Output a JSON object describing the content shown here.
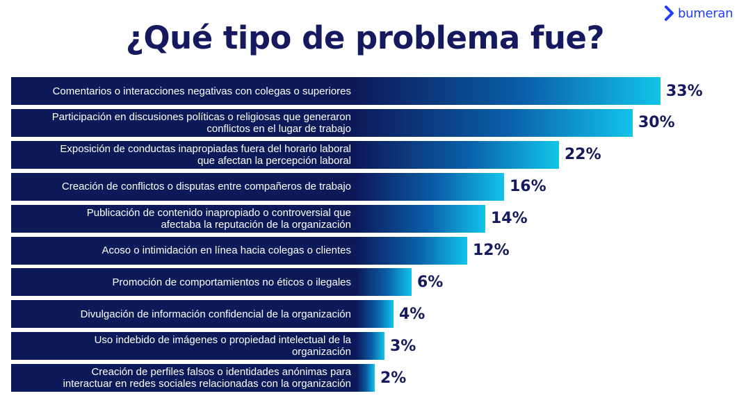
{
  "brand": {
    "name": "bumeran",
    "color": "#1f3cff"
  },
  "chart_data": {
    "type": "bar",
    "orientation": "horizontal",
    "title": "¿Qué tipo de problema fue?",
    "categories": [
      "Comentarios o interacciones negativas con colegas o superiores",
      "Participación en discusiones políticas o religiosas que generaron conflictos en el lugar de trabajo",
      "Exposición de conductas inapropiadas fuera del horario laboral que afectan la percepción laboral",
      "Creación de conflictos o disputas entre compañeros de trabajo",
      "Publicación de contenido inapropiado o controversial que afectaba la reputación de la organización",
      "Acoso o intimidación en línea hacia colegas o clientes",
      "Promoción de comportamientos no éticos o ilegales",
      "Divulgación de información confidencial de la organización",
      "Uso indebido de imágenes o propiedad intelectual de la organización",
      "Creación de perfiles falsos o identidades anónimas para interactuar en redes sociales relacionadas con la organización"
    ],
    "label_lines": [
      [
        "Comentarios o interacciones negativas con colegas o superiores"
      ],
      [
        "Participación en discusiones políticas o religiosas que generaron",
        "conflictos en el lugar de trabajo"
      ],
      [
        "Exposición de conductas inapropiadas fuera del horario laboral",
        "que afectan la percepción laboral"
      ],
      [
        "Creación de conflictos o disputas entre compañeros de trabajo"
      ],
      [
        "Publicación de contenido inapropiado o controversial que",
        "afectaba la reputación de la organización"
      ],
      [
        "Acoso o intimidación en línea hacia colegas o clientes"
      ],
      [
        "Promoción de comportamientos no éticos o ilegales"
      ],
      [
        "Divulgación de información confidencial de la organización"
      ],
      [
        "Uso indebido de imágenes o propiedad intelectual de la",
        "organización"
      ],
      [
        "Creación de perfiles falsos o identidades anónimas para",
        "interactuar en redes sociales relacionadas con la organización"
      ]
    ],
    "values": [
      33,
      30,
      22,
      16,
      14,
      12,
      6,
      4,
      3,
      2
    ],
    "value_labels": [
      "33%",
      "30%",
      "22%",
      "16%",
      "14%",
      "12%",
      "6%",
      "4%",
      "3%",
      "2%"
    ],
    "unit": "%",
    "colors": {
      "bar_dark": "#0d1a5a",
      "bar_mid": "#0a5fa8",
      "bar_light": "#12c4e8",
      "value_text": "#151a5e"
    }
  }
}
